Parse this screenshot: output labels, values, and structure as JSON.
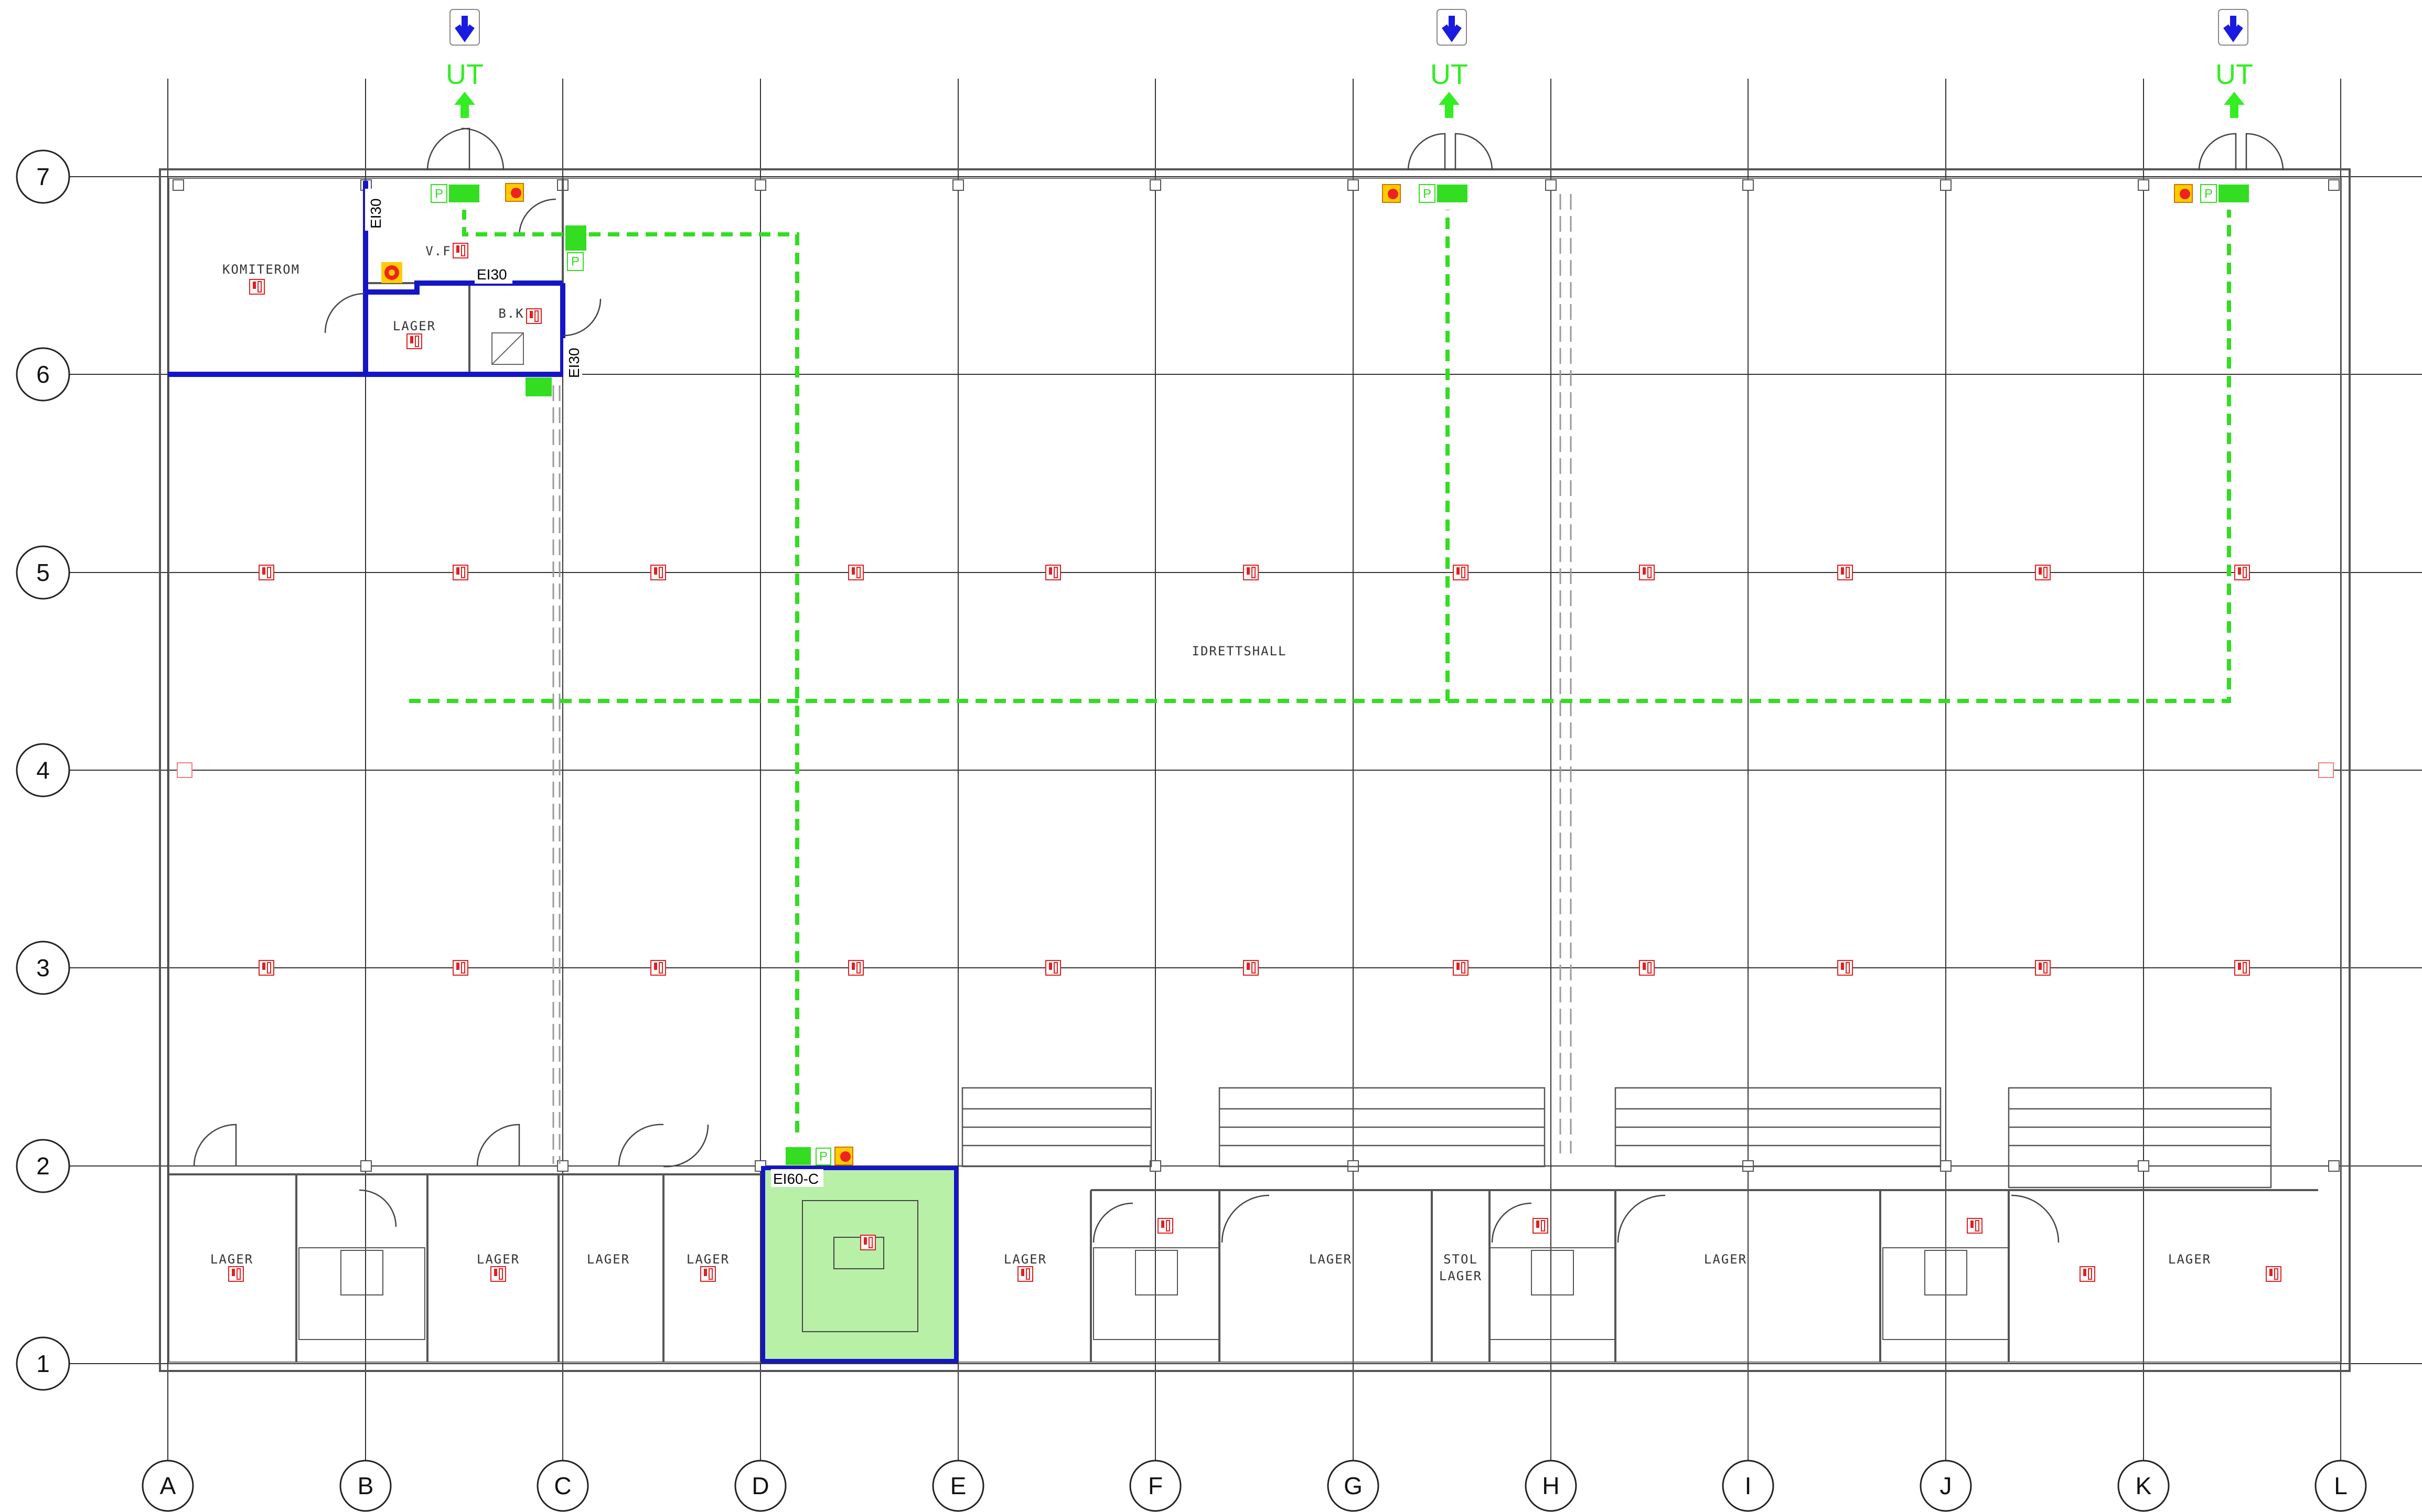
{
  "drawing": {
    "row_bubbles": [
      "7",
      "6",
      "5",
      "4",
      "3",
      "2",
      "1"
    ],
    "col_bubbles": [
      "A",
      "B",
      "C",
      "D",
      "E",
      "F",
      "G",
      "H",
      "I",
      "J",
      "K",
      "L"
    ],
    "rooms": {
      "komiterom": "KOMITEROM",
      "lager_top": "LAGER",
      "vf": "V.F",
      "bk": "B.K",
      "idrettshall": "IDRETTSHALL",
      "lager_1": "LAGER",
      "lager_2": "LAGER",
      "lager_3": "LAGER",
      "lager_4": "LAGER",
      "lager_5": "LAGER",
      "lager_6": "LAGER",
      "lager_7": "LAGER",
      "stol_lager_1": "STOL",
      "stol_lager_2": "LAGER",
      "lager_8": "LAGER"
    },
    "fire_ratings": {
      "ei30_a": "EI30",
      "ei30_b": "EI30",
      "ei30_c": "EI30",
      "ei60": "EI60-C"
    },
    "exits": [
      "UT",
      "UT",
      "UT"
    ],
    "parking_label": "P",
    "colors": {
      "escape_route": "#33dd22",
      "fire_wall": "#1515c8",
      "exit_arrow_blue": "#1a1ae0",
      "stair_fill": "#b8f0a8",
      "symbol_red": "#e02020"
    }
  }
}
